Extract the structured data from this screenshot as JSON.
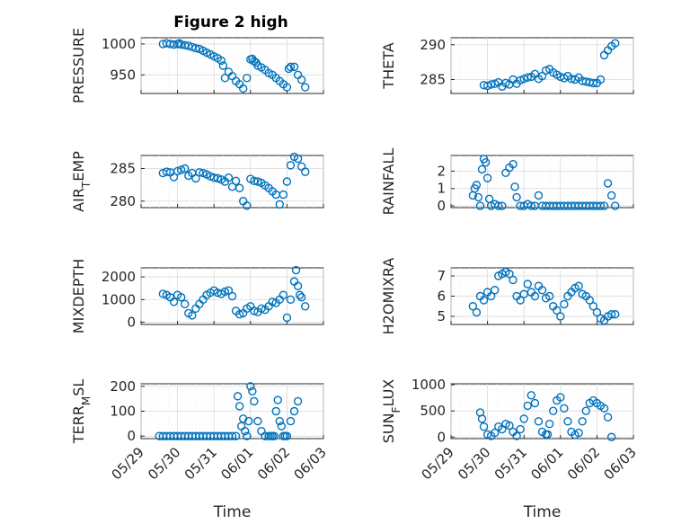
{
  "figure": {
    "title": "Figure 2 high",
    "bg": "#ffffff"
  },
  "marker_color": "#0072BD",
  "chart_data": [
    {
      "type": "scatter",
      "id": "pressure",
      "ylabel": "PRESSURE",
      "ylabel_sub": "",
      "title": "Figure 2 high",
      "ylim": [
        920,
        1010
      ],
      "yticks": [
        1000,
        950
      ],
      "yticklabels": [
        "1000",
        "950"
      ],
      "xlim": [
        "05/29",
        "06/03"
      ],
      "xticklabels": [],
      "xlabel": "",
      "x": [
        0.6,
        0.7,
        0.8,
        0.9,
        1.0,
        1.05,
        1.1,
        1.2,
        1.3,
        1.4,
        1.5,
        1.6,
        1.7,
        1.8,
        1.9,
        2.0,
        2.1,
        2.2,
        2.25,
        2.3,
        2.4,
        2.5,
        2.6,
        2.7,
        2.8,
        2.9,
        3.0,
        3.05,
        3.1,
        3.15,
        3.2,
        3.3,
        3.4,
        3.5,
        3.6,
        3.7,
        3.8,
        3.9,
        4.0,
        4.05,
        4.1,
        4.2,
        4.3,
        4.4,
        4.5
      ],
      "y": [
        1000,
        1001,
        1000,
        999,
        1000,
        1001,
        999,
        998,
        997,
        995,
        993,
        992,
        989,
        986,
        983,
        980,
        977,
        973,
        965,
        945,
        955,
        948,
        940,
        935,
        928,
        945,
        975,
        976,
        972,
        970,
        965,
        962,
        958,
        953,
        950,
        945,
        940,
        935,
        930,
        960,
        963,
        963,
        950,
        942,
        930
      ]
    },
    {
      "type": "scatter",
      "id": "theta",
      "ylabel": "THETA",
      "ylabel_sub": "",
      "ylim": [
        283,
        291
      ],
      "yticks": [
        290,
        285
      ],
      "yticklabels": [
        "290",
        "285"
      ],
      "xlim": [
        "05/29",
        "06/03"
      ],
      "xticklabels": [],
      "xlabel": "",
      "x": [
        0.9,
        1.0,
        1.1,
        1.2,
        1.3,
        1.4,
        1.5,
        1.6,
        1.7,
        1.8,
        1.9,
        2.0,
        2.1,
        2.2,
        2.3,
        2.4,
        2.5,
        2.6,
        2.7,
        2.8,
        2.9,
        3.0,
        3.1,
        3.2,
        3.3,
        3.4,
        3.5,
        3.6,
        3.7,
        3.8,
        3.9,
        4.0,
        4.1,
        4.2,
        4.3,
        4.4,
        4.5
      ],
      "y": [
        284.2,
        284.1,
        284.3,
        284.4,
        284.6,
        284.0,
        284.5,
        284.3,
        285.0,
        284.4,
        284.9,
        285.1,
        285.3,
        285.4,
        285.8,
        285.1,
        285.5,
        286.3,
        286.5,
        286.0,
        285.7,
        285.4,
        285.2,
        285.5,
        285.1,
        285.0,
        285.3,
        284.8,
        284.7,
        284.6,
        284.5,
        284.5,
        285.0,
        288.5,
        289.2,
        289.8,
        290.2
      ]
    },
    {
      "type": "scatter",
      "id": "air_temp",
      "ylabel": "AIR",
      "ylabel_sub": "T",
      "ylabel_suffix": "EMP",
      "ylim": [
        279,
        287
      ],
      "yticks": [
        285,
        280
      ],
      "yticklabels": [
        "285",
        "280"
      ],
      "xlim": [
        "05/29",
        "06/03"
      ],
      "xticklabels": [],
      "xlabel": "",
      "x": [
        0.6,
        0.7,
        0.8,
        0.9,
        1.0,
        1.1,
        1.2,
        1.3,
        1.4,
        1.5,
        1.6,
        1.7,
        1.8,
        1.9,
        2.0,
        2.1,
        2.2,
        2.3,
        2.4,
        2.5,
        2.6,
        2.7,
        2.8,
        2.9,
        3.0,
        3.1,
        3.2,
        3.3,
        3.4,
        3.5,
        3.6,
        3.7,
        3.8,
        3.9,
        4.0,
        4.1,
        4.2,
        4.3,
        4.4,
        4.5
      ],
      "y": [
        284.3,
        284.5,
        284.4,
        283.7,
        284.6,
        284.8,
        285.0,
        283.9,
        284.3,
        283.5,
        284.4,
        284.3,
        284.1,
        283.8,
        283.6,
        283.5,
        283.3,
        283.0,
        283.6,
        282.2,
        283.1,
        282.0,
        280.0,
        279.3,
        283.4,
        283.1,
        283.0,
        282.8,
        282.4,
        282.0,
        281.5,
        281.0,
        279.5,
        281.0,
        283.0,
        285.5,
        286.8,
        286.5,
        285.3,
        284.5
      ]
    },
    {
      "type": "scatter",
      "id": "rainfall",
      "ylabel": "RAINFALL",
      "ylabel_sub": "",
      "ylim": [
        -0.1,
        2.9
      ],
      "yticks": [
        2,
        1,
        0
      ],
      "yticklabels": [
        "2",
        "1",
        "0"
      ],
      "xlim": [
        "05/29",
        "06/03"
      ],
      "xticklabels": [],
      "xlabel": "",
      "x": [
        0.6,
        0.65,
        0.7,
        0.75,
        0.8,
        0.85,
        0.9,
        0.95,
        1.0,
        1.05,
        1.1,
        1.2,
        1.3,
        1.4,
        1.5,
        1.6,
        1.7,
        1.75,
        1.8,
        1.9,
        2.0,
        2.1,
        2.2,
        2.3,
        2.4,
        2.5,
        2.6,
        2.7,
        2.8,
        2.9,
        3.0,
        3.1,
        3.2,
        3.3,
        3.4,
        3.5,
        3.6,
        3.7,
        3.8,
        3.9,
        4.0,
        4.1,
        4.2,
        4.3,
        4.4,
        4.5
      ],
      "y": [
        0.6,
        1.0,
        1.2,
        0.5,
        0.0,
        2.1,
        2.7,
        2.5,
        1.6,
        0.4,
        0.0,
        0.1,
        0.0,
        0.0,
        1.9,
        2.2,
        2.4,
        1.1,
        0.5,
        0.0,
        0.0,
        0.1,
        0.0,
        0.0,
        0.6,
        0.0,
        0.0,
        0.0,
        0.0,
        0.0,
        0.0,
        0.0,
        0.0,
        0.0,
        0.0,
        0.0,
        0.0,
        0.0,
        0.0,
        0.0,
        0.0,
        0.0,
        0.0,
        1.3,
        0.6,
        0.0
      ]
    },
    {
      "type": "scatter",
      "id": "mixdepth",
      "ylabel": "MIXDEPTH",
      "ylabel_sub": "",
      "ylim": [
        -100,
        2400
      ],
      "yticks": [
        2000,
        1000,
        0
      ],
      "yticklabels": [
        "2000",
        "1000",
        "0"
      ],
      "xlim": [
        "05/29",
        "06/03"
      ],
      "xticklabels": [],
      "xlabel": "",
      "x": [
        0.6,
        0.7,
        0.8,
        0.9,
        1.0,
        1.1,
        1.2,
        1.3,
        1.4,
        1.5,
        1.6,
        1.7,
        1.8,
        1.9,
        2.0,
        2.1,
        2.2,
        2.3,
        2.4,
        2.5,
        2.6,
        2.7,
        2.8,
        2.9,
        3.0,
        3.1,
        3.2,
        3.3,
        3.4,
        3.5,
        3.6,
        3.7,
        3.8,
        3.9,
        4.0,
        4.1,
        4.2,
        4.25,
        4.3,
        4.35,
        4.4,
        4.5
      ],
      "y": [
        1250,
        1200,
        1100,
        900,
        1200,
        1100,
        800,
        400,
        300,
        600,
        800,
        1000,
        1200,
        1300,
        1400,
        1300,
        1250,
        1350,
        1400,
        1150,
        500,
        350,
        400,
        600,
        700,
        500,
        450,
        600,
        550,
        700,
        900,
        850,
        1000,
        1200,
        200,
        1000,
        1800,
        2300,
        1600,
        1200,
        1100,
        700
      ]
    },
    {
      "type": "scatter",
      "id": "h2omixra",
      "ylabel": "H2OMIXRA",
      "ylabel_sub": "",
      "ylim": [
        4.6,
        7.4
      ],
      "yticks": [
        7,
        6,
        5
      ],
      "yticklabels": [
        "7",
        "6",
        "5"
      ],
      "xlim": [
        "05/29",
        "06/03"
      ],
      "xticklabels": [],
      "xlabel": "",
      "x": [
        0.6,
        0.7,
        0.8,
        0.9,
        1.0,
        1.1,
        1.2,
        1.3,
        1.4,
        1.5,
        1.6,
        1.7,
        1.8,
        1.9,
        2.0,
        2.1,
        2.2,
        2.3,
        2.4,
        2.5,
        2.6,
        2.7,
        2.8,
        2.9,
        3.0,
        3.1,
        3.2,
        3.3,
        3.4,
        3.5,
        3.6,
        3.7,
        3.8,
        3.9,
        4.0,
        4.1,
        4.2,
        4.3,
        4.4,
        4.5
      ],
      "y": [
        5.5,
        5.2,
        6.0,
        5.8,
        6.2,
        6.0,
        6.3,
        7.0,
        7.1,
        7.2,
        7.1,
        6.8,
        6.0,
        5.8,
        6.1,
        6.6,
        6.2,
        6.0,
        6.5,
        6.3,
        5.9,
        6.0,
        5.5,
        5.3,
        5.0,
        5.6,
        6.0,
        6.2,
        6.4,
        6.5,
        6.1,
        6.0,
        5.8,
        5.5,
        5.2,
        4.9,
        4.8,
        5.0,
        5.1,
        5.1
      ]
    },
    {
      "type": "scatter",
      "id": "terr_msl",
      "ylabel": "TERR",
      "ylabel_sub": "M",
      "ylabel_suffix": "SL",
      "ylim": [
        -10,
        210
      ],
      "yticks": [
        200,
        100,
        0
      ],
      "yticklabels": [
        "200",
        "100",
        "0"
      ],
      "xlim": [
        "05/29",
        "06/03"
      ],
      "xticklabels": [
        "05/29",
        "05/30",
        "05/31",
        "06/01",
        "06/02",
        "06/03"
      ],
      "xlabel": "Time",
      "x": [
        0.5,
        0.6,
        0.7,
        0.8,
        0.9,
        1.0,
        1.1,
        1.2,
        1.3,
        1.4,
        1.5,
        1.6,
        1.7,
        1.8,
        1.9,
        2.0,
        2.1,
        2.2,
        2.3,
        2.4,
        2.5,
        2.6,
        2.65,
        2.7,
        2.75,
        2.8,
        2.85,
        2.9,
        2.95,
        3.0,
        3.05,
        3.1,
        3.2,
        3.3,
        3.4,
        3.5,
        3.55,
        3.6,
        3.65,
        3.7,
        3.75,
        3.8,
        3.85,
        3.9,
        3.95,
        4.0,
        4.1,
        4.2,
        4.3
      ],
      "y": [
        0,
        0,
        0,
        0,
        0,
        0,
        0,
        0,
        0,
        0,
        0,
        0,
        0,
        0,
        0,
        0,
        0,
        0,
        0,
        0,
        0,
        0,
        160,
        120,
        40,
        70,
        20,
        0,
        60,
        200,
        180,
        140,
        60,
        20,
        0,
        0,
        0,
        0,
        0,
        100,
        145,
        60,
        40,
        0,
        0,
        0,
        60,
        100,
        140
      ]
    },
    {
      "type": "scatter",
      "id": "sun_flux",
      "ylabel": "SUN",
      "ylabel_sub": "F",
      "ylabel_suffix": "LUX",
      "ylim": [
        -30,
        1020
      ],
      "yticks": [
        1000,
        500,
        0
      ],
      "yticklabels": [
        "1000",
        "500",
        "0"
      ],
      "xlim": [
        "05/29",
        "06/03"
      ],
      "xticklabels": [
        "05/29",
        "05/30",
        "05/31",
        "06/01",
        "06/02",
        "06/03"
      ],
      "xlabel": "Time",
      "x": [
        0.8,
        0.85,
        0.9,
        1.0,
        1.1,
        1.2,
        1.3,
        1.4,
        1.5,
        1.6,
        1.7,
        1.8,
        1.9,
        2.0,
        2.1,
        2.2,
        2.3,
        2.4,
        2.5,
        2.6,
        2.65,
        2.7,
        2.8,
        2.9,
        3.0,
        3.1,
        3.2,
        3.3,
        3.4,
        3.5,
        3.6,
        3.7,
        3.8,
        3.9,
        4.0,
        4.1,
        4.2,
        4.3,
        4.4
      ],
      "y": [
        470,
        350,
        200,
        50,
        20,
        80,
        200,
        150,
        250,
        220,
        100,
        20,
        150,
        350,
        600,
        800,
        650,
        300,
        100,
        50,
        50,
        250,
        500,
        700,
        760,
        550,
        300,
        100,
        40,
        80,
        300,
        500,
        650,
        700,
        650,
        600,
        550,
        380,
        0
      ]
    }
  ]
}
